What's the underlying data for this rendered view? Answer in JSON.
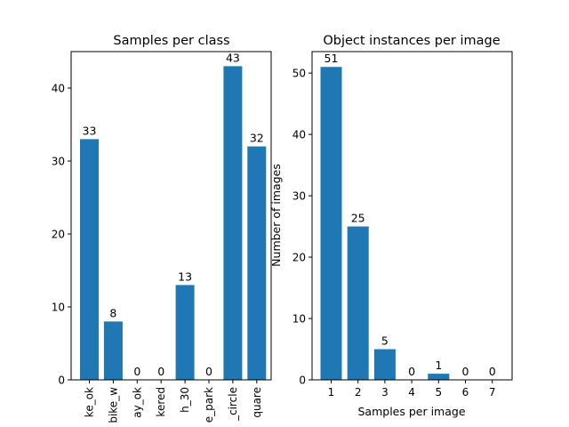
{
  "chart_data": [
    {
      "type": "bar",
      "title": "Samples per class",
      "xlabel": "",
      "ylabel": "",
      "categories": [
        "ke_ok",
        "bike_w",
        "ay_ok",
        "kered",
        "h_30",
        "e_park",
        "_circle",
        "quare"
      ],
      "values": [
        33,
        8,
        0,
        0,
        13,
        0,
        43,
        32
      ],
      "ylim": [
        0,
        45
      ],
      "yticks": [
        0,
        10,
        20,
        30,
        40
      ],
      "bar_color": "#1f77b4",
      "grid": false
    },
    {
      "type": "bar",
      "title": "Object instances per image",
      "xlabel": "Samples per image",
      "ylabel": "Number of images",
      "categories": [
        "1",
        "2",
        "3",
        "4",
        "5",
        "6",
        "7"
      ],
      "values": [
        51,
        25,
        5,
        0,
        1,
        0,
        0
      ],
      "ylim": [
        0,
        53.5
      ],
      "yticks": [
        0,
        10,
        20,
        30,
        40,
        50
      ],
      "bar_color": "#1f77b4",
      "grid": false
    }
  ]
}
